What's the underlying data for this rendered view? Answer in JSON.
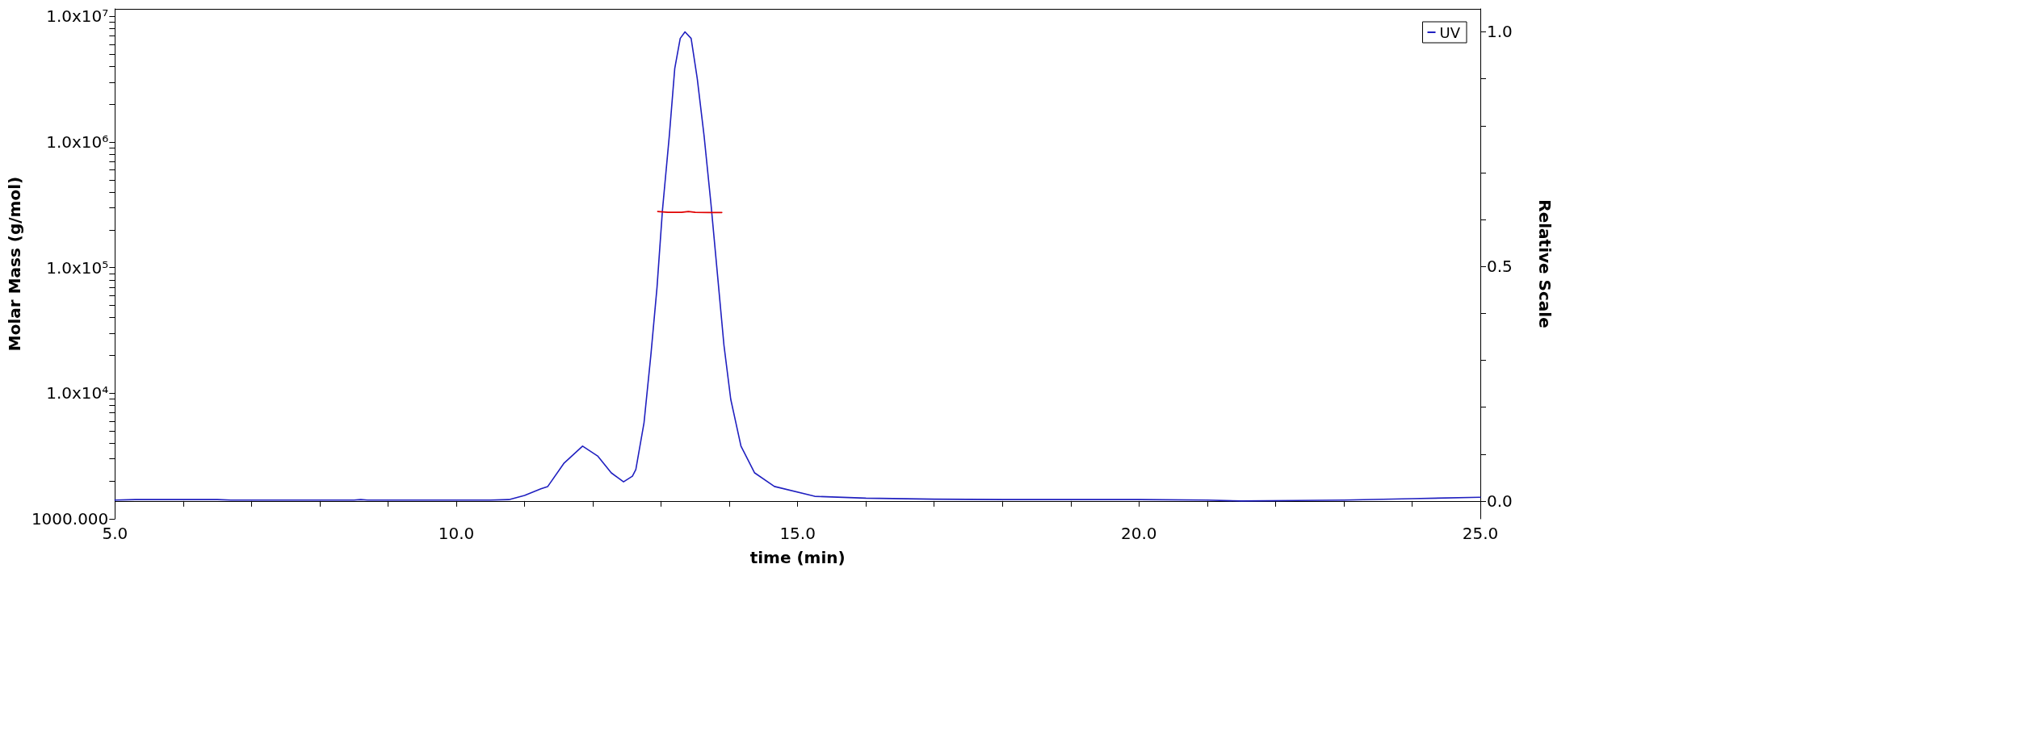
{
  "chart_data": {
    "type": "line",
    "xlabel": "time (min)",
    "ylabel": "Molar Mass (g/mol)",
    "y2label": "Relative Scale",
    "xlim": [
      5,
      25
    ],
    "xticks": [
      {
        "value": 5,
        "label": "5.0"
      },
      {
        "value": 6,
        "label": null
      },
      {
        "value": 7,
        "label": null
      },
      {
        "value": 8,
        "label": null
      },
      {
        "value": 9,
        "label": null
      },
      {
        "value": 10,
        "label": "10.0"
      },
      {
        "value": 11,
        "label": null
      },
      {
        "value": 12,
        "label": null
      },
      {
        "value": 13,
        "label": null
      },
      {
        "value": 14,
        "label": null
      },
      {
        "value": 15,
        "label": "15.0"
      },
      {
        "value": 16,
        "label": null
      },
      {
        "value": 17,
        "label": null
      },
      {
        "value": 18,
        "label": null
      },
      {
        "value": 19,
        "label": null
      },
      {
        "value": 20,
        "label": "20.0"
      },
      {
        "value": 21,
        "label": null
      },
      {
        "value": 22,
        "label": null
      },
      {
        "value": 23,
        "label": null
      },
      {
        "value": 24,
        "label": null
      },
      {
        "value": 25,
        "label": "25.0"
      }
    ],
    "ylim": [
      1000,
      11500000
    ],
    "yticks": [
      {
        "value": 1000,
        "label": "1000.000"
      },
      {
        "value": 2000,
        "label": null
      },
      {
        "value": 3000,
        "label": null
      },
      {
        "value": 4000,
        "label": null
      },
      {
        "value": 5000,
        "label": null
      },
      {
        "value": 6000,
        "label": null
      },
      {
        "value": 7000,
        "label": null
      },
      {
        "value": 8000,
        "label": null
      },
      {
        "value": 9000,
        "label": null
      },
      {
        "value": 10000,
        "label": "1.0x10⁴"
      },
      {
        "value": 20000,
        "label": null
      },
      {
        "value": 30000,
        "label": null
      },
      {
        "value": 40000,
        "label": null
      },
      {
        "value": 50000,
        "label": null
      },
      {
        "value": 60000,
        "label": null
      },
      {
        "value": 70000,
        "label": null
      },
      {
        "value": 80000,
        "label": null
      },
      {
        "value": 90000,
        "label": null
      },
      {
        "value": 100000,
        "label": "1.0x10⁵"
      },
      {
        "value": 200000,
        "label": null
      },
      {
        "value": 300000,
        "label": null
      },
      {
        "value": 400000,
        "label": null
      },
      {
        "value": 500000,
        "label": null
      },
      {
        "value": 600000,
        "label": null
      },
      {
        "value": 700000,
        "label": null
      },
      {
        "value": 800000,
        "label": null
      },
      {
        "value": 900000,
        "label": null
      },
      {
        "value": 1000000,
        "label": "1.0x10⁶"
      },
      {
        "value": 2000000,
        "label": null
      },
      {
        "value": 3000000,
        "label": null
      },
      {
        "value": 4000000,
        "label": null
      },
      {
        "value": 5000000,
        "label": null
      },
      {
        "value": 6000000,
        "label": null
      },
      {
        "value": 7000000,
        "label": null
      },
      {
        "value": 8000000,
        "label": null
      },
      {
        "value": 9000000,
        "label": null
      },
      {
        "value": 10000000,
        "label": "1.0x10⁷"
      }
    ],
    "y2lim": [
      -0.038,
      1.049
    ],
    "y2ticks": [
      {
        "value": 0,
        "label": "0.0"
      },
      {
        "value": 0.1,
        "label": null
      },
      {
        "value": 0.2,
        "label": null
      },
      {
        "value": 0.3,
        "label": null
      },
      {
        "value": 0.4,
        "label": null
      },
      {
        "value": 0.5,
        "label": "0.5"
      },
      {
        "value": 0.6,
        "label": null
      },
      {
        "value": 0.7,
        "label": null
      },
      {
        "value": 0.8,
        "label": null
      },
      {
        "value": 0.9,
        "label": null
      },
      {
        "value": 1,
        "label": "1.0"
      }
    ],
    "log": "y",
    "grid": false,
    "legend": "top right",
    "marker": "none",
    "line_style": "solid",
    "series": [
      {
        "name": "UV",
        "color": "#2020c0",
        "axis": "y2",
        "x": [
          5,
          5.3,
          6.5,
          6.7,
          8.5,
          8.6,
          8.7,
          10.5,
          10.77,
          11.0,
          11.24,
          11.34,
          11.58,
          11.85,
          12.07,
          12.27,
          12.45,
          12.58,
          12.63,
          12.75,
          12.85,
          12.94,
          13.02,
          13.12,
          13.2,
          13.28,
          13.35,
          13.44,
          13.53,
          13.63,
          13.73,
          13.83,
          13.92,
          14.02,
          14.17,
          14.37,
          14.66,
          15.25,
          16,
          17,
          18,
          20,
          21,
          21.5,
          22.3,
          23,
          24,
          25
        ],
        "values": [
          0.002,
          0.003,
          0.003,
          0.002,
          0.002,
          0.003,
          0.002,
          0.002,
          0.003,
          0.012,
          0.026,
          0.031,
          0.081,
          0.117,
          0.096,
          0.06,
          0.041,
          0.053,
          0.067,
          0.167,
          0.311,
          0.455,
          0.62,
          0.778,
          0.922,
          0.986,
          1.0,
          0.986,
          0.9,
          0.778,
          0.634,
          0.476,
          0.333,
          0.217,
          0.117,
          0.06,
          0.031,
          0.01,
          0.006,
          0.004,
          0.003,
          0.003,
          0.002,
          0.0,
          0.001,
          0.002,
          0.005,
          0.008
        ]
      },
      {
        "color": "#e00000",
        "x": [
          12.95,
          13.1,
          13.3,
          13.4,
          13.5,
          13.7,
          13.89
        ],
        "values": [
          280000,
          276000,
          276000,
          280000,
          276000,
          275000,
          275000
        ]
      }
    ]
  }
}
